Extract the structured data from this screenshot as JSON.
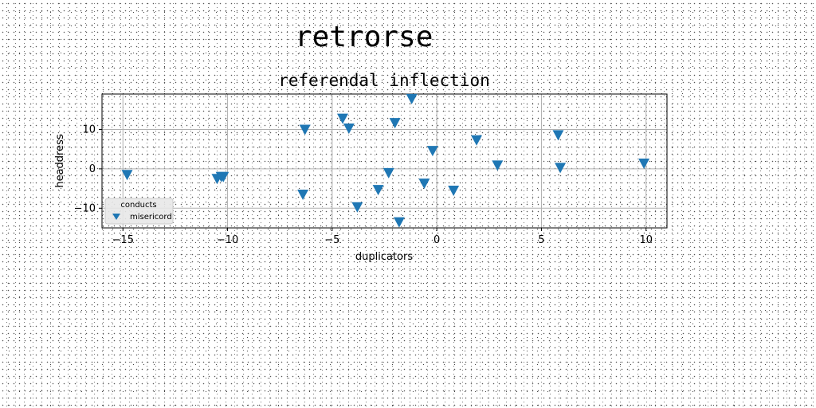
{
  "suptitle": "retrorse",
  "chart_data": {
    "type": "scatter",
    "title": "referendal inflection",
    "xlabel": "duplicators",
    "ylabel": "headdress",
    "xlim": [
      -16,
      11
    ],
    "ylim": [
      -15,
      19
    ],
    "xticks": [
      -15,
      -10,
      -5,
      0,
      5,
      10
    ],
    "xtick_labels": [
      "−15",
      "−10",
      "−5",
      "0",
      "5",
      "10"
    ],
    "yticks": [
      -10,
      0,
      10
    ],
    "ytick_labels": [
      "−10",
      "0",
      "10"
    ],
    "grid": true,
    "marker": "triangle-down",
    "color": "#1f77b4",
    "legend": {
      "title": "conducts",
      "location": "lower-left",
      "entries": [
        "misericord"
      ]
    },
    "series": [
      {
        "name": "misericord",
        "x": [
          -14.8,
          -10.5,
          -10.3,
          -10.2,
          -6.4,
          -6.3,
          -4.5,
          -4.2,
          -3.8,
          -2.8,
          -2.3,
          -2.0,
          -1.8,
          -1.2,
          -0.6,
          -0.2,
          0.8,
          1.9,
          2.9,
          5.8,
          5.9,
          9.9
        ],
        "y": [
          -1.5,
          -2.5,
          -2.0,
          -2.0,
          -6.5,
          10.0,
          12.8,
          10.3,
          -9.7,
          -5.3,
          -1.0,
          11.7,
          -13.5,
          17.8,
          -3.7,
          4.6,
          -5.5,
          7.3,
          0.9,
          8.6,
          0.3,
          1.4
        ]
      }
    ]
  }
}
